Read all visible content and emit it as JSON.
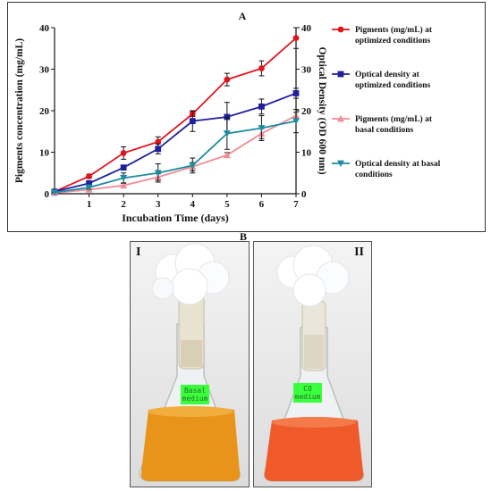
{
  "panel_a": {
    "label": "A"
  },
  "panel_b": {
    "label": "B",
    "photo_left": {
      "label": "I",
      "tag_line1": "Basal",
      "tag_line2": "medium",
      "medium_color": "#e8941a"
    },
    "photo_right": {
      "label": "II",
      "tag_line1": "CO",
      "tag_line2": "medium",
      "medium_color": "#f05a2a"
    }
  },
  "chart_data": {
    "type": "line",
    "xlabel": "Incubation Time (days)",
    "ylabel_left": "Pigments concentration (mg/mL)",
    "ylabel_right": "Optical Density (OD 600 nm)",
    "x": [
      0,
      1,
      2,
      3,
      4,
      5,
      6,
      7
    ],
    "x_ticks": [
      "1",
      "2",
      "3",
      "4",
      "5",
      "6",
      "7"
    ],
    "y_left_ticks": [
      "0",
      "10",
      "20",
      "30",
      "40"
    ],
    "y_right_ticks": [
      "0",
      "10",
      "20",
      "30",
      "40"
    ],
    "ylim_left": [
      0,
      40
    ],
    "ylim_right": [
      0,
      40
    ],
    "legend_position": "right",
    "series": [
      {
        "name": "Pigments (mg/mL) at optimized conditions",
        "legend_lines": [
          "Pigments (mg/mL) at",
          "optimized conditions"
        ],
        "color": "#e0141e",
        "marker": "circle",
        "values": [
          0.5,
          4.2,
          9.8,
          12.5,
          19.2,
          27.5,
          30.2,
          37.5
        ],
        "errors": [
          0.3,
          0.5,
          1.5,
          1.2,
          0.6,
          1.5,
          1.8,
          2.5
        ]
      },
      {
        "name": "Optical density at optimized conditions",
        "legend_lines": [
          "Optical density at",
          "optimized conditions"
        ],
        "color": "#1f1fa0",
        "marker": "square",
        "values": [
          0.5,
          2.5,
          6.3,
          10.8,
          17.5,
          18.5,
          21.0,
          24.2
        ],
        "errors": [
          0.3,
          0.4,
          0.6,
          1.2,
          2.5,
          3.5,
          1.8,
          1.2
        ]
      },
      {
        "name": "Pigments (mg/mL) at basal conditions",
        "legend_lines": [
          "Pigments (mg/mL) at",
          "basal conditions"
        ],
        "color": "#f08c96",
        "marker": "triangle",
        "values": [
          0.2,
          1.0,
          2.0,
          4.0,
          6.5,
          9.3,
          14.5,
          18.8
        ],
        "errors": [
          0.2,
          0.3,
          0.5,
          0.8,
          1.0,
          0.6,
          1.2,
          0.8
        ]
      },
      {
        "name": "Optical density at basal conditions",
        "legend_lines": [
          "Optical density at basal",
          "conditions"
        ],
        "color": "#1e8ca0",
        "marker": "triangle-down",
        "values": [
          0.3,
          1.5,
          3.8,
          5.0,
          6.8,
          14.5,
          15.8,
          17.5
        ],
        "errors": [
          0.2,
          0.4,
          1.2,
          2.2,
          1.8,
          3.8,
          3.0,
          2.8
        ]
      }
    ]
  }
}
